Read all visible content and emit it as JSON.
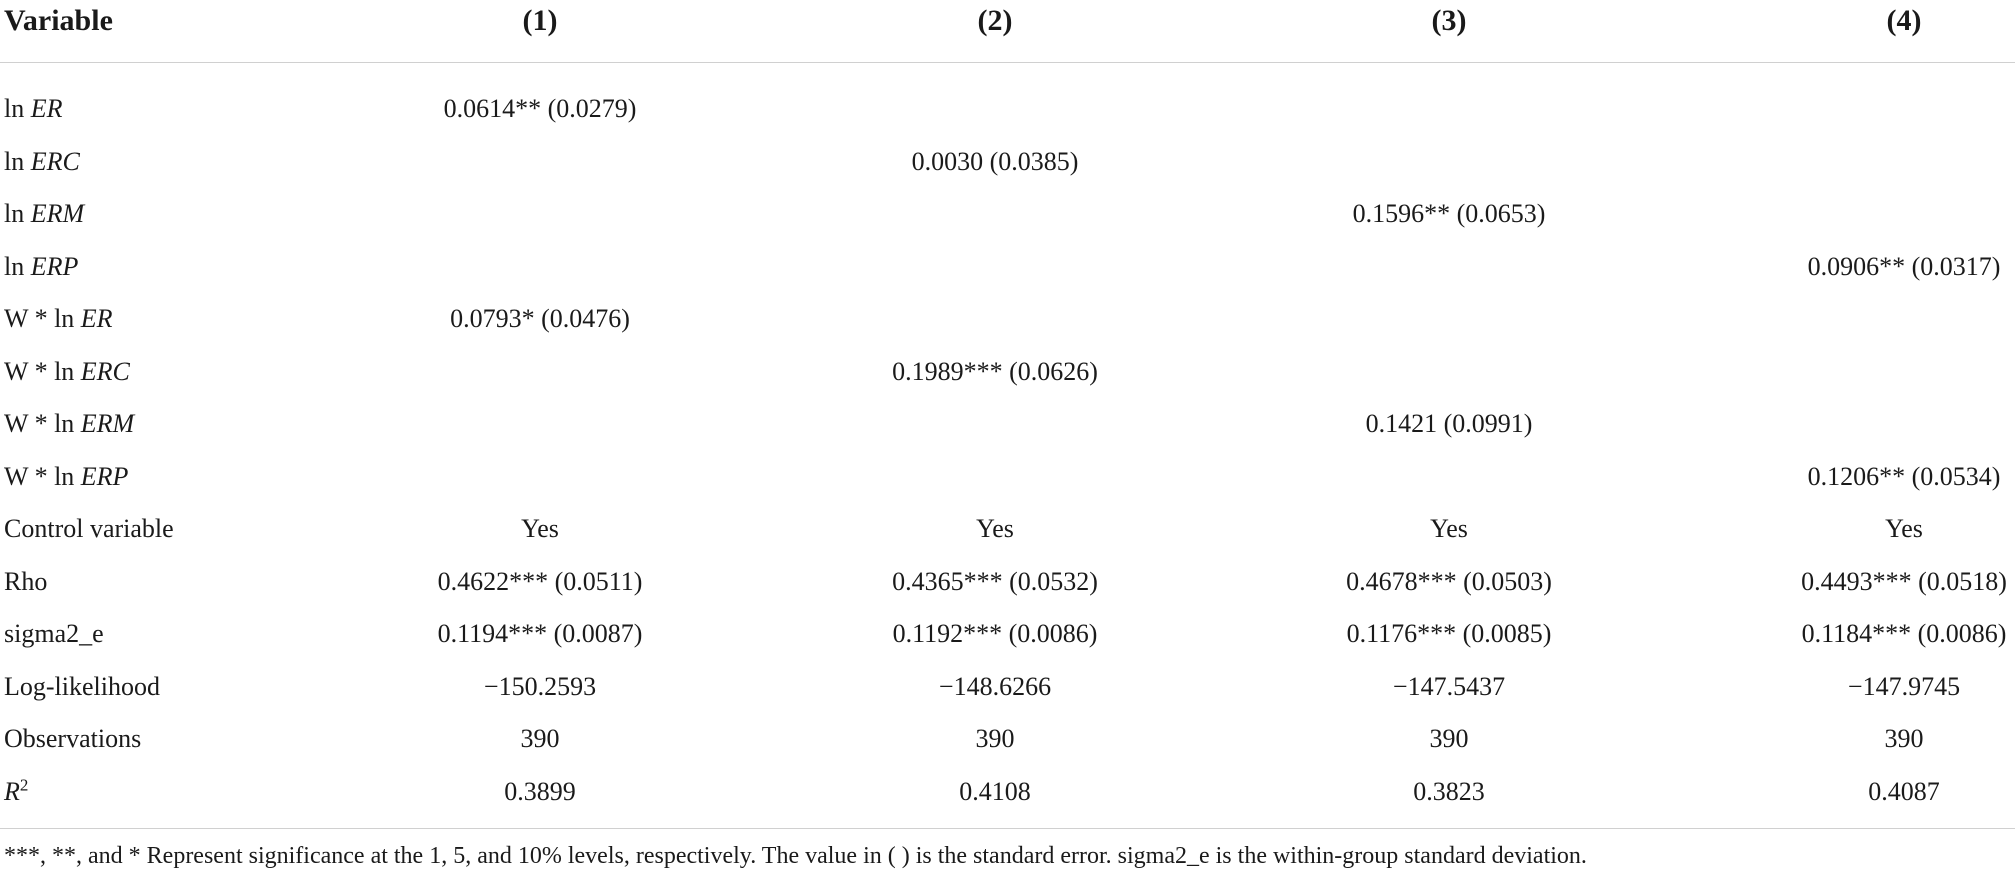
{
  "header": {
    "variable": "Variable",
    "cols": [
      "(1)",
      "(2)",
      "(3)",
      "(4)"
    ]
  },
  "rows": [
    {
      "prefix": "ln ",
      "var": "ER",
      "cells": [
        "0.0614** (0.0279)",
        "",
        "",
        ""
      ]
    },
    {
      "prefix": "ln ",
      "var": "ERC",
      "cells": [
        "",
        "0.0030 (0.0385)",
        "",
        ""
      ]
    },
    {
      "prefix": "ln ",
      "var": "ERM",
      "cells": [
        "",
        "",
        "0.1596** (0.0653)",
        ""
      ]
    },
    {
      "prefix": "ln ",
      "var": "ERP",
      "cells": [
        "",
        "",
        "",
        "0.0906** (0.0317)"
      ]
    },
    {
      "prefix": "W * ln ",
      "var": "ER",
      "cells": [
        "0.0793* (0.0476)",
        "",
        "",
        ""
      ]
    },
    {
      "prefix": "W * ln ",
      "var": "ERC",
      "cells": [
        "",
        "0.1989*** (0.0626)",
        "",
        ""
      ]
    },
    {
      "prefix": "W * ln ",
      "var": "ERM",
      "cells": [
        "",
        "",
        "0.1421 (0.0991)",
        ""
      ]
    },
    {
      "prefix": "W * ln ",
      "var": "ERP",
      "cells": [
        "",
        "",
        "",
        "0.1206** (0.0534)"
      ]
    },
    {
      "prefix": "Control variable",
      "var": "",
      "cells": [
        "Yes",
        "Yes",
        "Yes",
        "Yes"
      ]
    },
    {
      "prefix": "Rho",
      "var": "",
      "cells": [
        "0.4622*** (0.0511)",
        "0.4365*** (0.0532)",
        "0.4678*** (0.0503)",
        "0.4493*** (0.0518)"
      ]
    },
    {
      "prefix": "sigma2_e",
      "var": "",
      "cells": [
        "0.1194*** (0.0087)",
        "0.1192*** (0.0086)",
        "0.1176*** (0.0085)",
        "0.1184*** (0.0086)"
      ]
    },
    {
      "prefix": "Log-likelihood",
      "var": "",
      "cells": [
        "−150.2593",
        "−148.6266",
        "−147.5437",
        "−147.9745"
      ]
    },
    {
      "prefix": "Observations",
      "var": "",
      "cells": [
        "390",
        "390",
        "390",
        "390"
      ]
    }
  ],
  "r2_row": {
    "label": "R",
    "sup": "2",
    "cells": [
      "0.3899",
      "0.4108",
      "0.3823",
      "0.4087"
    ]
  },
  "footnote": "***, **, and * Represent significance at the 1, 5, and 10% levels, respectively. The value in ( ) is the standard error. sigma2_e is the within-group standard deviation."
}
